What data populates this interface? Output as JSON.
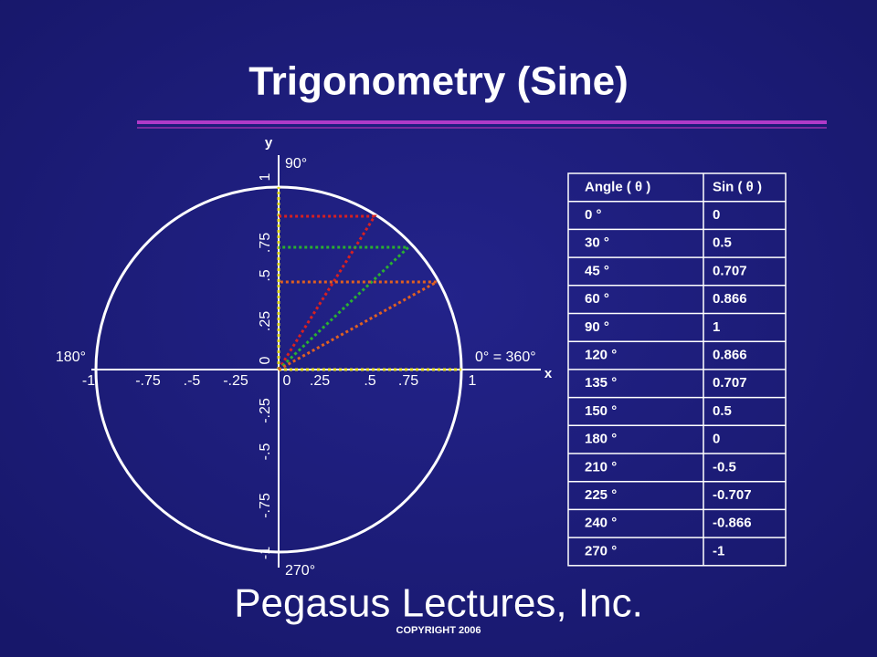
{
  "header": {
    "title": "Trigonometry (Sine)"
  },
  "diagram": {
    "x_axis_label": "x",
    "y_axis_label": "y",
    "angle_labels": [
      "90°",
      "180°",
      "0° = 360°",
      "270°"
    ],
    "x_tick_labels": [
      "-1",
      "-.75",
      ".-5",
      "-.25",
      "0",
      ".25",
      ".5",
      ".75",
      "1"
    ],
    "y_tick_labels": [
      "1",
      ".75",
      ".5",
      ".25",
      "0",
      "-.25",
      "-.5",
      "-.75",
      "-1"
    ]
  },
  "table": {
    "headers": [
      "Angle ( θ )",
      "Sin ( θ )"
    ],
    "rows": [
      [
        "0 °",
        "0"
      ],
      [
        "30 °",
        "0.5"
      ],
      [
        "45 °",
        "0.707"
      ],
      [
        "60 °",
        "0.866"
      ],
      [
        "90 °",
        "1"
      ],
      [
        "120 °",
        "0.866"
      ],
      [
        "135 °",
        "0.707"
      ],
      [
        "150 °",
        "0.5"
      ],
      [
        "180 °",
        "0"
      ],
      [
        "210 °",
        "-0.5"
      ],
      [
        "225 °",
        "-0.707"
      ],
      [
        "240 °",
        "-0.866"
      ],
      [
        "270 °",
        "-1"
      ]
    ]
  },
  "footer": {
    "company": "Pegasus Lectures, Inc.",
    "copyright": "COPYRIGHT 2006"
  }
}
